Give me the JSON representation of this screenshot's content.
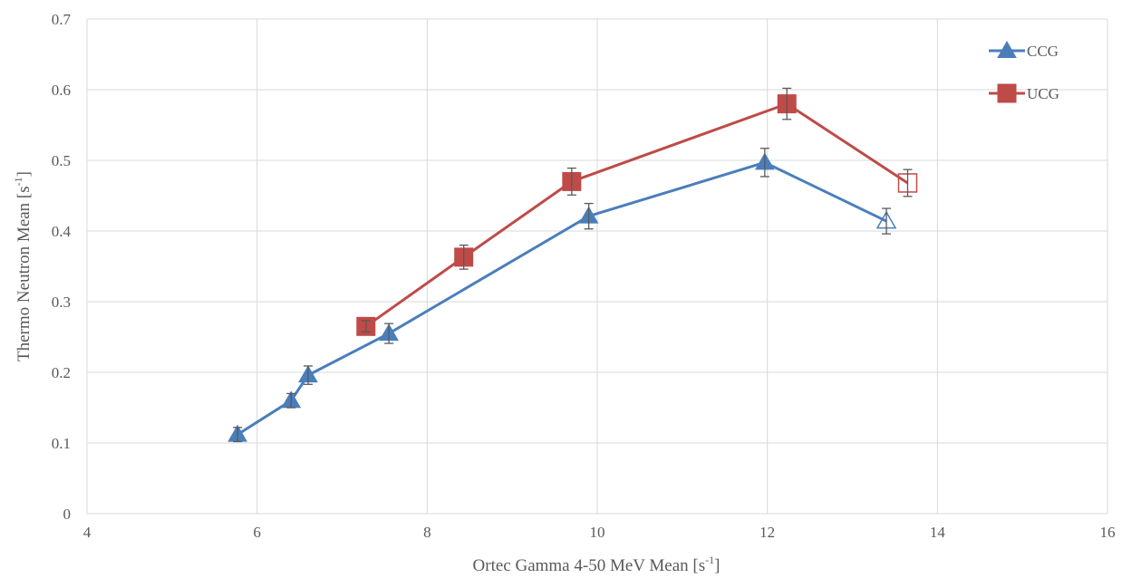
{
  "chart_data": {
    "type": "scatter",
    "xlabel": "Ortec Gamma 4-50 MeV Mean [s",
    "xlabel_sup": "-1",
    "xlabel_end": "]",
    "ylabel": "Thermo Neutron Mean [s",
    "ylabel_sup": "-1",
    "ylabel_end": "]",
    "xlim": [
      4,
      16
    ],
    "ylim": [
      0,
      0.7
    ],
    "x_ticks": [
      "4",
      "6",
      "8",
      "10",
      "12",
      "14",
      "16"
    ],
    "y_ticks": [
      "0",
      "0.1",
      "0.2",
      "0.3",
      "0.4",
      "0.5",
      "0.6",
      "0.7"
    ],
    "grid": true,
    "legend_position": "top-right",
    "series": [
      {
        "name": "CCG",
        "color": "#4a7ebb",
        "marker": "triangle",
        "points": [
          {
            "x": 5.77,
            "y": 0.112,
            "err": 0.01,
            "hollow": false
          },
          {
            "x": 6.4,
            "y": 0.16,
            "err": 0.01,
            "hollow": false
          },
          {
            "x": 6.6,
            "y": 0.196,
            "err": 0.013,
            "hollow": false
          },
          {
            "x": 7.55,
            "y": 0.255,
            "err": 0.014,
            "hollow": false
          },
          {
            "x": 9.9,
            "y": 0.421,
            "err": 0.018,
            "hollow": false
          },
          {
            "x": 11.97,
            "y": 0.497,
            "err": 0.02,
            "hollow": false
          },
          {
            "x": 13.4,
            "y": 0.414,
            "err": 0.018,
            "hollow": true
          }
        ]
      },
      {
        "name": "UCG",
        "color": "#be4b48",
        "marker": "square",
        "points": [
          {
            "x": 7.28,
            "y": 0.265,
            "err": 0.008,
            "hollow": false
          },
          {
            "x": 8.43,
            "y": 0.363,
            "err": 0.017,
            "hollow": false
          },
          {
            "x": 9.7,
            "y": 0.47,
            "err": 0.019,
            "hollow": false
          },
          {
            "x": 12.23,
            "y": 0.58,
            "err": 0.022,
            "hollow": false
          },
          {
            "x": 13.65,
            "y": 0.468,
            "err": 0.019,
            "hollow": true
          }
        ]
      }
    ]
  }
}
